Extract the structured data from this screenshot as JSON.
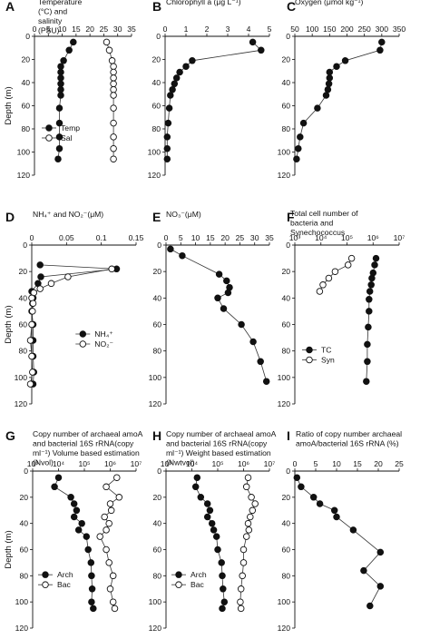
{
  "chart_data": [
    {
      "type": "scatter",
      "panel": "A",
      "title": "Temperature (°C) and salinity (PSU)",
      "ylabel": "Depth (m)",
      "xlim": [
        0,
        35
      ],
      "xticks": [
        "0",
        "5",
        "10",
        "15",
        "20",
        "25",
        "30",
        "35"
      ],
      "ylim": [
        0,
        120
      ],
      "yticks": [
        "0",
        "20",
        "40",
        "60",
        "80",
        "100",
        "120"
      ],
      "legend_position": "middle-left",
      "series": [
        {
          "name": "Temp",
          "style": "filled",
          "x": [
            14.0,
            12.5,
            10.5,
            9.5,
            9.5,
            9.5,
            9.5,
            9.5,
            9.5,
            9.0,
            9.0,
            9.0,
            9.0,
            8.5
          ],
          "y": [
            5,
            12,
            21,
            26,
            31,
            36,
            41,
            46,
            51,
            62,
            75,
            87,
            97,
            106
          ]
        },
        {
          "name": "Sal",
          "style": "open",
          "x": [
            26.0,
            27.0,
            28.0,
            28.5,
            28.5,
            28.5,
            28.5,
            28.5,
            28.5,
            28.5,
            28.5,
            28.5,
            28.5,
            28.5
          ],
          "y": [
            5,
            12,
            21,
            26,
            31,
            36,
            41,
            46,
            51,
            62,
            75,
            87,
            97,
            106
          ]
        }
      ]
    },
    {
      "type": "line",
      "panel": "B",
      "title": "Chlorophyll a (μg L⁻¹)",
      "xlim": [
        0,
        5
      ],
      "xticks": [
        "0",
        "1",
        "2",
        "3",
        "4",
        "5"
      ],
      "ylim": [
        0,
        120
      ],
      "yticks": [
        "0",
        "20",
        "40",
        "60",
        "80",
        "100",
        "120"
      ],
      "series": [
        {
          "name": "",
          "style": "filled",
          "x": [
            4.2,
            4.6,
            1.3,
            1.0,
            0.7,
            0.55,
            0.45,
            0.35,
            0.25,
            0.2,
            0.15,
            0.1,
            0.1,
            0.1
          ],
          "y": [
            5,
            12,
            21,
            26,
            31,
            36,
            41,
            46,
            51,
            62,
            75,
            87,
            97,
            106
          ]
        }
      ]
    },
    {
      "type": "line",
      "panel": "C",
      "title": "Oxygen (μmol kg⁻¹)",
      "xlim": [
        50,
        350
      ],
      "xticks": [
        "50",
        "100",
        "150",
        "200",
        "250",
        "300",
        "350"
      ],
      "ylim": [
        0,
        120
      ],
      "yticks": [
        "0",
        "20",
        "40",
        "60",
        "80",
        "100",
        "120"
      ],
      "series": [
        {
          "name": "",
          "style": "filled",
          "x": [
            300,
            295,
            195,
            170,
            150,
            150,
            148,
            145,
            140,
            115,
            75,
            65,
            60,
            55
          ],
          "y": [
            5,
            12,
            21,
            26,
            31,
            36,
            41,
            46,
            51,
            62,
            75,
            87,
            97,
            106
          ]
        }
      ]
    },
    {
      "type": "line",
      "panel": "D",
      "title": "NH₄⁺ and NO₂⁻(μM)",
      "ylabel": "Depth (m)",
      "xlim": [
        0,
        0.15
      ],
      "xticks": [
        "0",
        "0.05",
        "0.1",
        "0.15"
      ],
      "ylim": [
        0,
        120
      ],
      "yticks": [
        "0",
        "20",
        "40",
        "60",
        "80",
        "100",
        "120"
      ],
      "legend_position": "middle-right",
      "series": [
        {
          "name": "NH₄⁺",
          "style": "filled",
          "x": [
            0.012,
            0.122,
            0.013,
            0.009,
            0.0,
            0.002,
            0.001,
            0.0,
            0.002,
            0.002,
            0.002,
            0.003,
            0.002
          ],
          "y": [
            15,
            18,
            24,
            29,
            35,
            40,
            44,
            50,
            60,
            72,
            84,
            96,
            105
          ]
        },
        {
          "name": "NO₂⁻",
          "style": "open",
          "x": [
            0.115,
            0.052,
            0.028,
            0.012,
            0.003,
            0.0,
            0.002,
            0.001,
            0.0,
            -0.002,
            0.0,
            0.001,
            -0.002
          ],
          "y": [
            18,
            24,
            29,
            33,
            36,
            40,
            44,
            50,
            60,
            72,
            84,
            96,
            105
          ]
        }
      ]
    },
    {
      "type": "line",
      "panel": "E",
      "title": "NO₃⁻(μM)",
      "xlim": [
        0,
        35
      ],
      "xticks": [
        "0",
        "5",
        "10",
        "15",
        "20",
        "25",
        "30",
        "35"
      ],
      "ylim": [
        0,
        120
      ],
      "yticks": [
        "0",
        "20",
        "40",
        "60",
        "80",
        "100",
        "120"
      ],
      "series": [
        {
          "name": "",
          "style": "filled",
          "x": [
            1.5,
            5.5,
            18.0,
            20.5,
            21.5,
            21.0,
            17.5,
            19.5,
            25.5,
            29.5,
            32.0,
            34.0
          ],
          "y": [
            3,
            8,
            22,
            27,
            32,
            36,
            40,
            48,
            60,
            73,
            88,
            103
          ]
        }
      ]
    },
    {
      "type": "line",
      "panel": "F",
      "title": "Total cell number of bacteria and Synechococcus",
      "xscale": "log",
      "xlim": [
        1000,
        10000000
      ],
      "xticks": [
        "10³",
        "10⁴",
        "10⁵",
        "10⁶",
        "10⁷"
      ],
      "ylim": [
        0,
        120
      ],
      "yticks": [
        "0",
        "20",
        "40",
        "60",
        "80",
        "100",
        "120"
      ],
      "legend_position": "middle-left",
      "series": [
        {
          "name": "TC",
          "style": "filled",
          "x": [
            1300000,
            1150000,
            1000000,
            900000,
            850000,
            750000,
            700000,
            700000,
            650000,
            600000,
            600000,
            550000
          ],
          "y": [
            10,
            15,
            21,
            25,
            30,
            35,
            41,
            50,
            62,
            75,
            88,
            103
          ]
        },
        {
          "name": "Syn",
          "style": "open",
          "x": [
            150000,
            110000,
            35000,
            20000,
            12000,
            9000
          ],
          "y": [
            10,
            15,
            20,
            25,
            30,
            35
          ]
        }
      ]
    },
    {
      "type": "line",
      "panel": "G",
      "title": "Copy number of archaeal amoA and bacterial 16S rRNA(copy ml⁻¹) Volume based estimation (Nvol)",
      "ylabel": "Depth (m)",
      "xscale": "log",
      "xlim": [
        1000,
        10000000
      ],
      "xticks": [
        "10³",
        "10⁴",
        "10⁵",
        "10⁶",
        "10⁷"
      ],
      "ylim": [
        0,
        120
      ],
      "yticks": [
        "0",
        "20",
        "40",
        "60",
        "80",
        "100",
        "120"
      ],
      "legend_position": "bottom-left",
      "series": [
        {
          "name": "Arch",
          "style": "filled",
          "x": [
            10000,
            7000,
            30000,
            40000,
            50000,
            40000,
            80000,
            60000,
            120000,
            140000,
            180000,
            190000,
            200000,
            190000,
            220000
          ],
          "y": [
            5,
            12,
            20,
            25,
            30,
            35,
            40,
            45,
            50,
            60,
            70,
            80,
            90,
            100,
            105
          ]
        },
        {
          "name": "Bac",
          "style": "open",
          "x": [
            1800000,
            700000,
            2200000,
            1000000,
            1100000,
            600000,
            900000,
            700000,
            400000,
            700000,
            900000,
            1300000,
            1000000,
            1300000,
            1500000
          ],
          "y": [
            5,
            12,
            20,
            25,
            30,
            35,
            40,
            45,
            50,
            60,
            70,
            80,
            90,
            100,
            105
          ]
        }
      ]
    },
    {
      "type": "line",
      "panel": "H",
      "title": "Copy number of archaeal amoA and bacterial 16S rRNA(copy ml⁻¹) Weight based estimation (Nwtvol)",
      "xscale": "log",
      "xlim": [
        1000,
        10000000
      ],
      "xticks": [
        "10³",
        "10⁴",
        "10⁵",
        "10⁶",
        "10⁷"
      ],
      "ylim": [
        0,
        120
      ],
      "yticks": [
        "0",
        "20",
        "40",
        "60",
        "80",
        "100",
        "120"
      ],
      "legend_position": "bottom-left",
      "series": [
        {
          "name": "Arch",
          "style": "filled",
          "x": [
            16000,
            14000,
            22000,
            40000,
            50000,
            40000,
            60000,
            70000,
            90000,
            100000,
            140000,
            150000,
            160000,
            180000,
            150000
          ],
          "y": [
            5,
            12,
            20,
            25,
            30,
            35,
            40,
            45,
            50,
            60,
            70,
            80,
            90,
            100,
            105
          ]
        },
        {
          "name": "Bac",
          "style": "open",
          "x": [
            1500000,
            1300000,
            2000000,
            2800000,
            2200000,
            1800000,
            1500000,
            1600000,
            1300000,
            1000000,
            1000000,
            900000,
            800000,
            750000,
            800000
          ],
          "y": [
            5,
            12,
            20,
            25,
            30,
            35,
            40,
            45,
            50,
            60,
            70,
            80,
            90,
            100,
            105
          ]
        }
      ]
    },
    {
      "type": "line",
      "panel": "I",
      "title": "Ratio of copy number archaeal amoA/bacterial 16S rRNA (%)",
      "xlim": [
        0,
        25
      ],
      "xticks": [
        "0",
        "5",
        "10",
        "15",
        "20",
        "25"
      ],
      "ylim": [
        0,
        120
      ],
      "yticks": [
        "0",
        "20",
        "40",
        "60",
        "80",
        "100",
        "120"
      ],
      "series": [
        {
          "name": "",
          "style": "filled",
          "x": [
            0.5,
            1.5,
            4.5,
            6.0,
            9.5,
            10.0,
            14.0,
            20.5,
            16.5,
            20.5,
            18.0
          ],
          "y": [
            5,
            12,
            20,
            25,
            30,
            35,
            45,
            62,
            76,
            88,
            103
          ]
        }
      ]
    }
  ]
}
